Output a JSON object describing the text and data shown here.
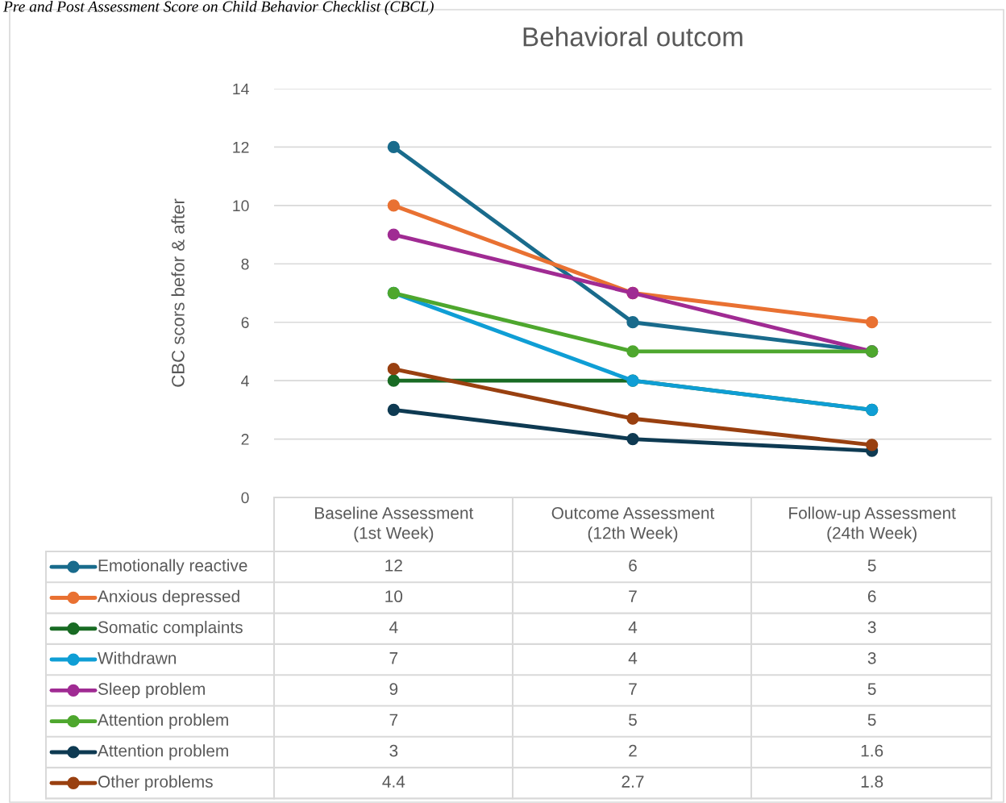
{
  "chart_data": {
    "type": "line",
    "title": "Behavioral outcom",
    "ylabel": "CBC scors befor & after",
    "annotations": [
      "Pre and Post Assessment Score on Child Behavior Checklist (CBCL)"
    ],
    "categories": [
      "Baseline Assessment\n(1st Week)",
      "Outcome Assessment\n(12th Week)",
      "Follow-up Assessment\n(24th Week)"
    ],
    "series": [
      {
        "name": "Emotionally reactive",
        "color": "#196b8c",
        "values": [
          12,
          6,
          5
        ]
      },
      {
        "name": "Anxious depressed",
        "color": "#e97132",
        "values": [
          10,
          7,
          6
        ]
      },
      {
        "name": "Somatic complaints",
        "color": "#196b24",
        "values": [
          4,
          4,
          3
        ]
      },
      {
        "name": "Withdrawn",
        "color": "#0f9ed5",
        "values": [
          7,
          4,
          3
        ]
      },
      {
        "name": "Sleep problem",
        "color": "#a02b93",
        "values": [
          9,
          7,
          5
        ]
      },
      {
        "name": "Attention problem",
        "color": "#4ea72e",
        "values": [
          7,
          5,
          5
        ]
      },
      {
        "name": "Attention problem",
        "color": "#0e3a52",
        "values": [
          3,
          2,
          1.6
        ]
      },
      {
        "name": "Other problems",
        "color": "#994010",
        "values": [
          4.4,
          2.7,
          1.8
        ]
      }
    ],
    "ylim": [
      0,
      14
    ],
    "yticks": [
      0,
      2,
      4,
      6,
      8,
      10,
      12,
      14
    ],
    "grid": "y",
    "legend": "bottom",
    "data_labels": true,
    "marker": "circle",
    "line_style": "solid"
  }
}
